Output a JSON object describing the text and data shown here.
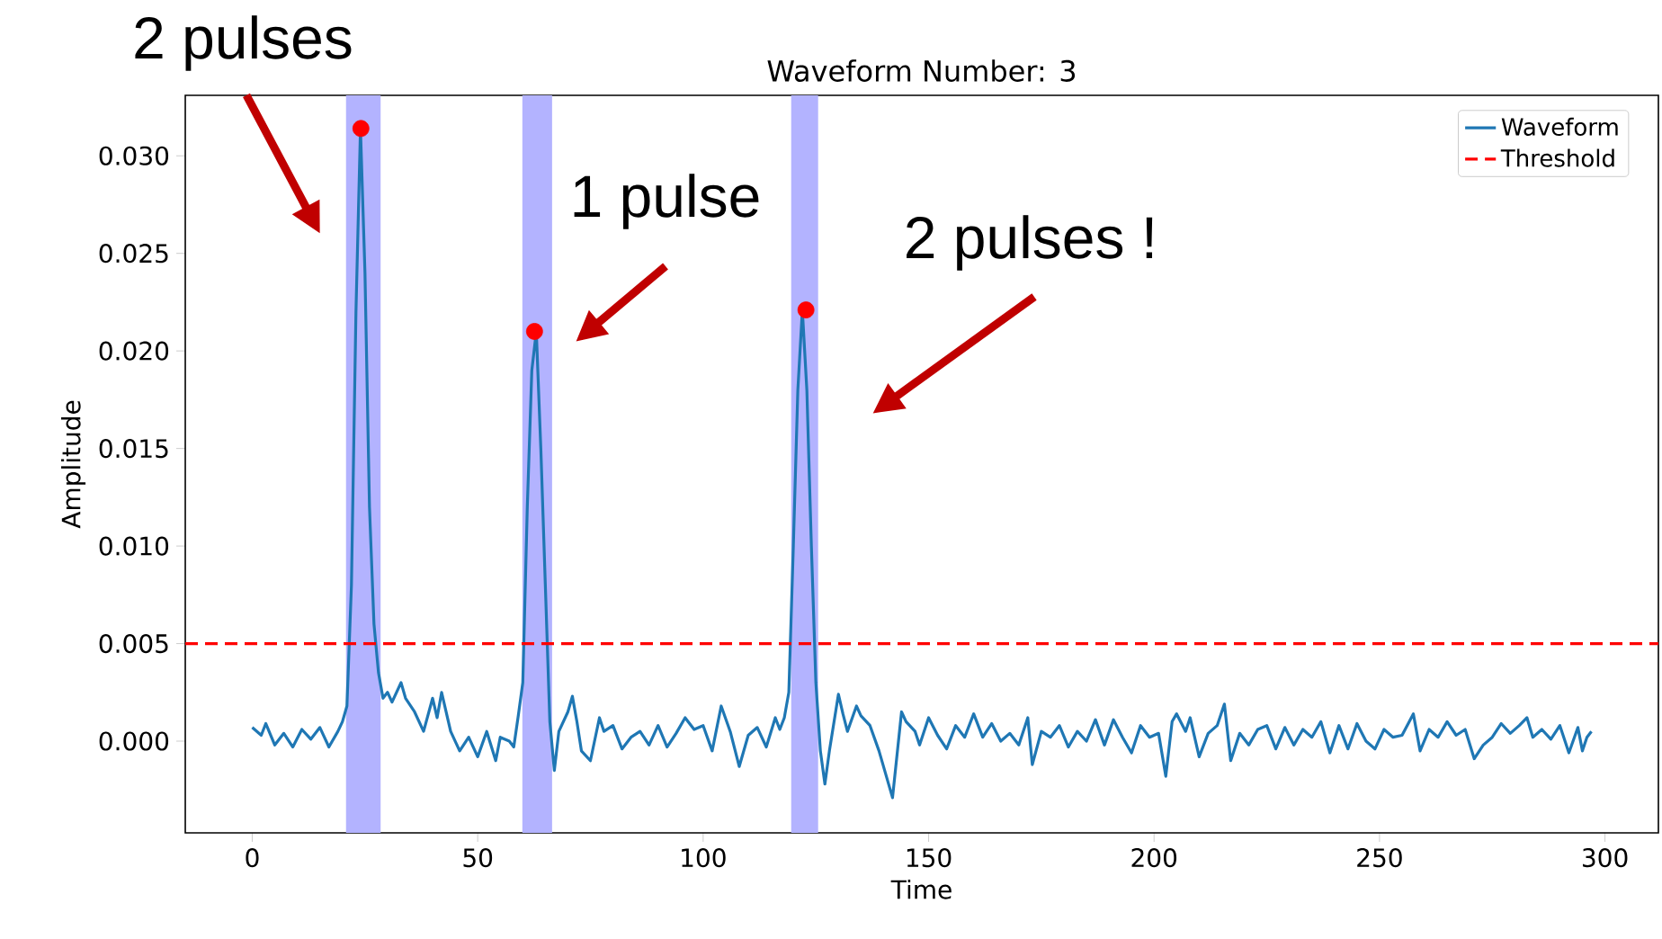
{
  "chart_data": {
    "type": "line",
    "title": "Waveform Number: 3",
    "xlabel": "Time",
    "ylabel": "Amplitude",
    "xlim": [
      -14.85,
      311.85
    ],
    "ylim": [
      -0.0047,
      0.0331
    ],
    "xticks": [
      0,
      50,
      100,
      150,
      200,
      250,
      300
    ],
    "yticks": [
      {
        "value": 0,
        "label": "0.000"
      },
      {
        "value": 0.005,
        "label": "0.005"
      },
      {
        "value": 0.01,
        "label": "0.010"
      },
      {
        "value": 0.015,
        "label": "0.015"
      },
      {
        "value": 0.02,
        "label": "0.020"
      },
      {
        "value": 0.025,
        "label": "0.025"
      },
      {
        "value": 0.03,
        "label": "0.030"
      }
    ],
    "legend": "top right",
    "series": [
      {
        "name": "Waveform",
        "color": "#1f77b4",
        "x": [
          0,
          2,
          3,
          5,
          7,
          9,
          11,
          13,
          15,
          17,
          19,
          20,
          21,
          22,
          23,
          24,
          25,
          26,
          27,
          28,
          29,
          30,
          31,
          33,
          34,
          36,
          38,
          40,
          41,
          42,
          44,
          46,
          48,
          50,
          52,
          54,
          55,
          57,
          58,
          59,
          60,
          61,
          62,
          63,
          64,
          65,
          66,
          67,
          68,
          70,
          71,
          72,
          73,
          75,
          77,
          78,
          80,
          82,
          84,
          86,
          88,
          90,
          92,
          94,
          96,
          98,
          100,
          102,
          104,
          106,
          108,
          110,
          112,
          114,
          116,
          117,
          118,
          119,
          120,
          121,
          122,
          123,
          124,
          125,
          126,
          127,
          128,
          130,
          131,
          132,
          134,
          135,
          137,
          139,
          142,
          144,
          145,
          147,
          148,
          150,
          152,
          154,
          156,
          158,
          160,
          162,
          164,
          166,
          168,
          170,
          172,
          173,
          175,
          177,
          179,
          181,
          183,
          185,
          187,
          189,
          191,
          193,
          195,
          197,
          199,
          201,
          202.6,
          204,
          205,
          207,
          208,
          210,
          212,
          214,
          215.6,
          217,
          219,
          221,
          223,
          225,
          227,
          229,
          231,
          233,
          235,
          237,
          239,
          241,
          243,
          245,
          247,
          249,
          251,
          253,
          255,
          257.5,
          259,
          261,
          263,
          265,
          267,
          269,
          271,
          273,
          275,
          277,
          279,
          281,
          282.7,
          284,
          286,
          288,
          290,
          292,
          294,
          295,
          296,
          297
        ],
        "values": [
          0.0007,
          0.0003,
          0.0009,
          -0.0002,
          0.0004,
          -0.0003,
          0.0006,
          0.0001,
          0.0007,
          -0.0003,
          0.0005,
          0.001,
          0.0018,
          0.008,
          0.022,
          0.0314,
          0.024,
          0.012,
          0.006,
          0.0035,
          0.0022,
          0.0025,
          0.002,
          0.003,
          0.0022,
          0.0015,
          0.0005,
          0.0022,
          0.0012,
          0.0025,
          0.0005,
          -0.0005,
          0.0002,
          -0.0008,
          0.0005,
          -0.001,
          0.0002,
          0.0,
          -0.0003,
          0.0013,
          0.003,
          0.012,
          0.019,
          0.021,
          0.015,
          0.008,
          0.001,
          -0.0015,
          0.0005,
          0.0015,
          0.0023,
          0.001,
          -0.0005,
          -0.001,
          0.0012,
          0.0005,
          0.0008,
          -0.0004,
          0.0002,
          0.0005,
          -0.0002,
          0.0008,
          -0.0003,
          0.0004,
          0.0012,
          0.0006,
          0.0008,
          -0.0005,
          0.0018,
          0.0005,
          -0.0013,
          0.0003,
          0.0007,
          -0.0003,
          0.0012,
          0.0006,
          0.0012,
          0.0025,
          0.01,
          0.018,
          0.0221,
          0.018,
          0.01,
          0.003,
          -0.0005,
          -0.0022,
          -0.0005,
          0.0024,
          0.0014,
          0.0005,
          0.0018,
          0.0013,
          0.0008,
          -0.0005,
          -0.0029,
          0.0015,
          0.001,
          0.0005,
          -0.0002,
          0.0012,
          0.0003,
          -0.0004,
          0.0008,
          0.0002,
          0.0014,
          0.0002,
          0.0009,
          0.0,
          0.0004,
          -0.0002,
          0.0012,
          -0.0012,
          0.0005,
          0.0002,
          0.0008,
          -0.0003,
          0.0005,
          0.0,
          0.0011,
          -0.0002,
          0.0011,
          0.0002,
          -0.0006,
          0.0008,
          0.0002,
          0.0004,
          -0.0018,
          0.001,
          0.0014,
          0.0005,
          0.0012,
          -0.0008,
          0.0004,
          0.0008,
          0.0019,
          -0.001,
          0.0004,
          -0.0002,
          0.0006,
          0.0008,
          -0.0004,
          0.0007,
          -0.0002,
          0.0006,
          0.0002,
          0.001,
          -0.0006,
          0.0008,
          -0.0004,
          0.0009,
          0.0,
          -0.0004,
          0.0006,
          0.0002,
          0.0003,
          0.0014,
          -0.0005,
          0.0006,
          0.0002,
          0.001,
          0.0003,
          0.0006,
          -0.0009,
          -0.0002,
          0.0002,
          0.0009,
          0.0004,
          0.0008,
          0.0012,
          0.0002,
          0.0006,
          0.0001,
          0.0008,
          -0.0006,
          0.0007,
          -0.0005,
          0.0002,
          0.0005
        ]
      },
      {
        "type": "scatter",
        "color": "#ff0000",
        "marker": "circle",
        "x": [
          24.1,
          62.6,
          122.8
        ],
        "values": [
          0.0314,
          0.021,
          0.0221
        ]
      }
    ],
    "ref_lines": [
      {
        "axis": "y",
        "value": 0.005,
        "label": "Threshold",
        "color": "#ff0000",
        "line_style": "dashed"
      }
    ],
    "bands": [
      {
        "axis": "x",
        "from": 20.8,
        "to": 28.5,
        "color": "#b3b3ff"
      },
      {
        "axis": "x",
        "from": 59.9,
        "to": 66.5,
        "color": "#b3b3ff"
      },
      {
        "axis": "x",
        "from": 119.5,
        "to": 125.5,
        "color": "#b3b3ff"
      }
    ],
    "annotations": [
      "2 pulses",
      "1 pulse",
      "2 pulses !"
    ]
  }
}
